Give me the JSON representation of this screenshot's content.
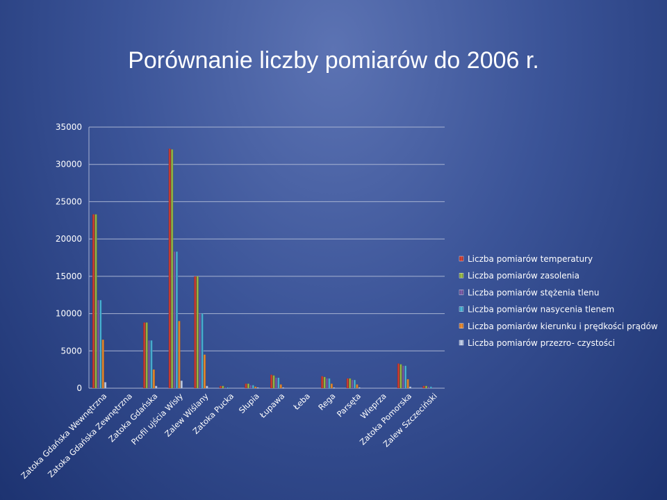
{
  "title": "Porównanie liczby pomiarów do 2006 r.",
  "chart_data": {
    "type": "bar",
    "title": "Porównanie liczby pomiarów do 2006 r.",
    "xlabel": "",
    "ylabel": "",
    "ylim": [
      0,
      35000
    ],
    "yticks": [
      0,
      5000,
      10000,
      15000,
      20000,
      25000,
      30000,
      35000
    ],
    "grid": true,
    "legend_position": "right",
    "categories": [
      "Zatoka Gdańska Wewnętrzna",
      "Zatoka Gdańska Zewnętrzna",
      "Zatoka Gdańska",
      "Profil ujścia Wisły",
      "Zalew Wiślany",
      "Zatoka Pucka",
      "Słupia",
      "Łupawa",
      "Łeba",
      "Rega",
      "Parsęta",
      "Wieprza",
      "Zatoka Pomorska",
      "Zalew Szczeciński"
    ],
    "series": [
      {
        "name": "Liczba pomiarów temperatury",
        "color": "#c0392b",
        "values": [
          23300,
          0,
          8800,
          32100,
          15000,
          300,
          600,
          1800,
          0,
          1600,
          1300,
          0,
          3300,
          300
        ]
      },
      {
        "name": "Liczba pomiarów zasolenia",
        "color": "#8fb040",
        "values": [
          23300,
          0,
          8800,
          32000,
          15000,
          300,
          600,
          1700,
          0,
          1500,
          1300,
          0,
          3200,
          300
        ]
      },
      {
        "name": "Liczba pomiarów stężenia tlenu",
        "color": "#6d4f9a",
        "values": [
          11800,
          0,
          6400,
          18300,
          10000,
          100,
          400,
          1400,
          0,
          1300,
          1100,
          0,
          3000,
          200
        ]
      },
      {
        "name": "Liczba pomiarów nasycenia tlenem",
        "color": "#38a3c8",
        "values": [
          11800,
          0,
          6400,
          18300,
          10000,
          100,
          400,
          1400,
          0,
          1300,
          1100,
          0,
          3000,
          200
        ]
      },
      {
        "name": "Liczba pomiarów kierunku i prędkości prądów",
        "color": "#e67e22",
        "values": [
          6500,
          0,
          2500,
          9000,
          4500,
          0,
          200,
          500,
          0,
          600,
          500,
          0,
          1200,
          0
        ]
      },
      {
        "name": "Liczba pomiarów przezro- czystości",
        "color": "#a8b8d8",
        "values": [
          800,
          0,
          300,
          1000,
          300,
          0,
          100,
          100,
          0,
          100,
          100,
          0,
          200,
          0
        ]
      }
    ]
  }
}
